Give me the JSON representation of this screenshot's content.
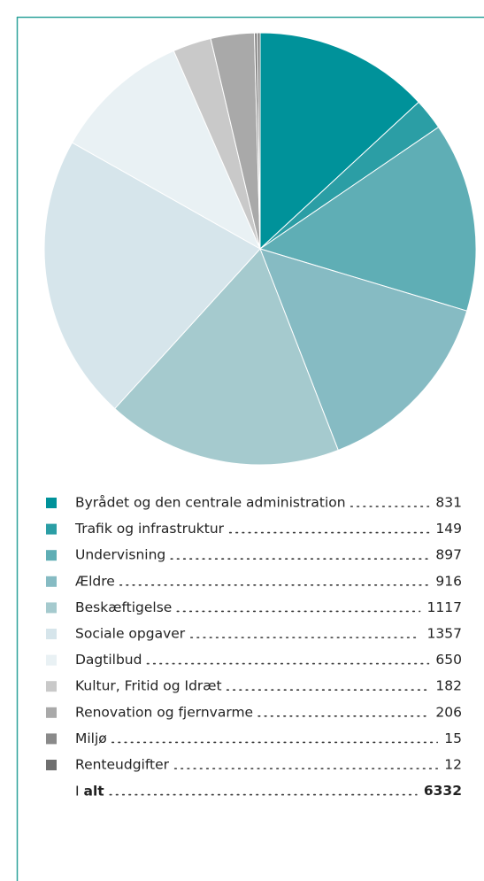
{
  "chart_data": {
    "type": "pie",
    "categories": [
      "Byrådet og den centrale administration",
      "Trafik og infrastruktur",
      "Undervisning",
      "Ældre",
      "Beskæftigelse",
      "Sociale opgaver",
      "Dagtilbud",
      "Kultur, Fritid og Idræt",
      "Renovation og fjernvarme",
      "Miljø",
      "Renteudgifter"
    ],
    "values": [
      831,
      149,
      897,
      916,
      1117,
      1357,
      650,
      182,
      206,
      15,
      12
    ],
    "colors": [
      "#00929a",
      "#2b9ea5",
      "#5faeb5",
      "#86bbc3",
      "#a5cace",
      "#d6e5eb",
      "#e9f1f4",
      "#c9c9c9",
      "#a9a9a9",
      "#8a8a8a",
      "#6f6f6f"
    ],
    "total": {
      "prefix": "I",
      "label": "alt",
      "value": 6332
    }
  }
}
